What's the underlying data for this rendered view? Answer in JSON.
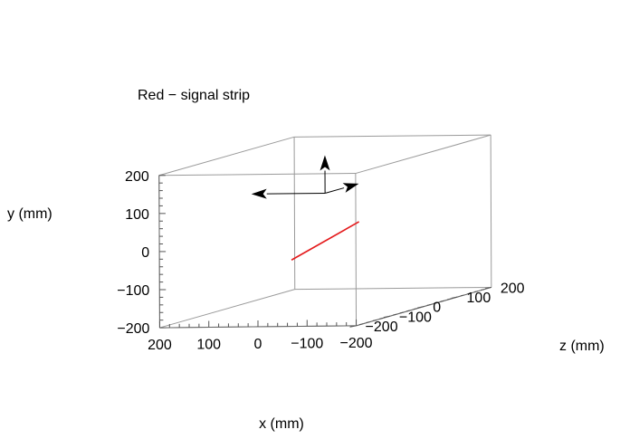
{
  "chart_data": {
    "type": "3d-line",
    "annotation": "Red − signal strip",
    "axes": {
      "x": {
        "label": "x (mm)",
        "range": [
          -200,
          200
        ],
        "ticks": [
          {
            "value": 200,
            "label": "200"
          },
          {
            "value": 100,
            "label": "100"
          },
          {
            "value": 0,
            "label": "0"
          },
          {
            "value": -100,
            "label": "−100"
          },
          {
            "value": -200,
            "label": "−200"
          }
        ]
      },
      "y": {
        "label": "y (mm)",
        "range": [
          -200,
          200
        ],
        "ticks": [
          {
            "value": 200,
            "label": "200"
          },
          {
            "value": 100,
            "label": "100"
          },
          {
            "value": 0,
            "label": "0"
          },
          {
            "value": -100,
            "label": "−100"
          },
          {
            "value": -200,
            "label": "−200"
          }
        ]
      },
      "z": {
        "label": "z (mm)",
        "range": [
          -200,
          200
        ],
        "ticks": [
          {
            "value": 200,
            "label": "200"
          },
          {
            "value": 100,
            "label": "100"
          },
          {
            "value": 0,
            "label": "0"
          },
          {
            "value": -100,
            "label": "−100"
          },
          {
            "value": -200,
            "label": "−200"
          }
        ]
      }
    },
    "series": [
      {
        "color": "#e41a1c",
        "points": [
          [
            0,
            -50,
            -100
          ],
          [
            0,
            0,
            100
          ]
        ]
      }
    ],
    "vectors": [
      {
        "color": "#000000",
        "from": [
          0,
          100,
          0
        ],
        "to": [
          0,
          200,
          0
        ]
      },
      {
        "color": "#000000",
        "from": [
          0,
          100,
          0
        ],
        "to": [
          150,
          100,
          0
        ]
      },
      {
        "color": "#000000",
        "from": [
          0,
          100,
          0
        ],
        "to": [
          0,
          100,
          100
        ]
      }
    ],
    "box": true,
    "grid": false,
    "legend": "none"
  }
}
